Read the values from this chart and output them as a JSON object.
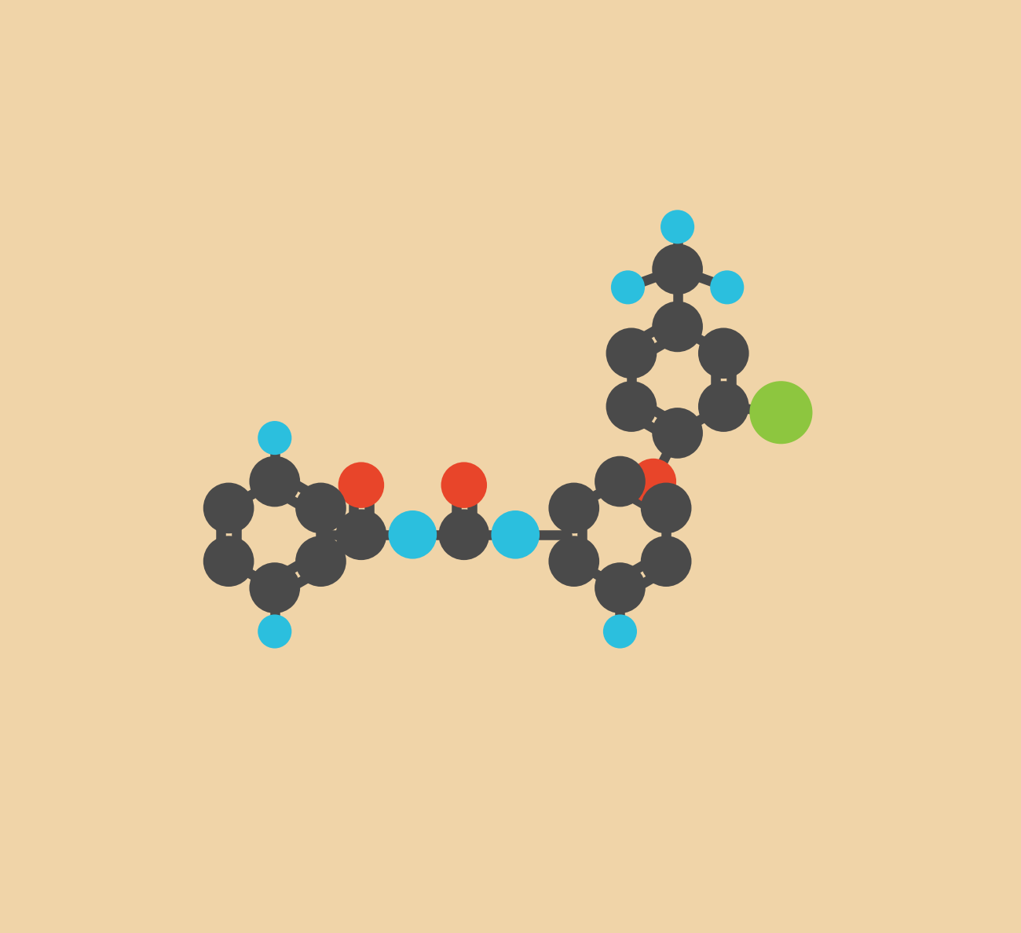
{
  "background_color": "#f0d4a8",
  "C_color": "#4a4a4a",
  "O_color": "#e8452a",
  "N_color": "#2bbfde",
  "F_color": "#2bbfde",
  "Cl_color": "#8dc63f",
  "bond_color": "#4a4a4a",
  "lw": 9.0,
  "dbg": 0.13,
  "rc": 0.42,
  "ro": 0.38,
  "rn": 0.4,
  "rf": 0.28,
  "rcl": 0.52,
  "figsize": [
    13.0,
    11.88
  ],
  "dpi": 100,
  "xlim": [
    0,
    13.0
  ],
  "ylim": [
    0,
    11.88
  ]
}
